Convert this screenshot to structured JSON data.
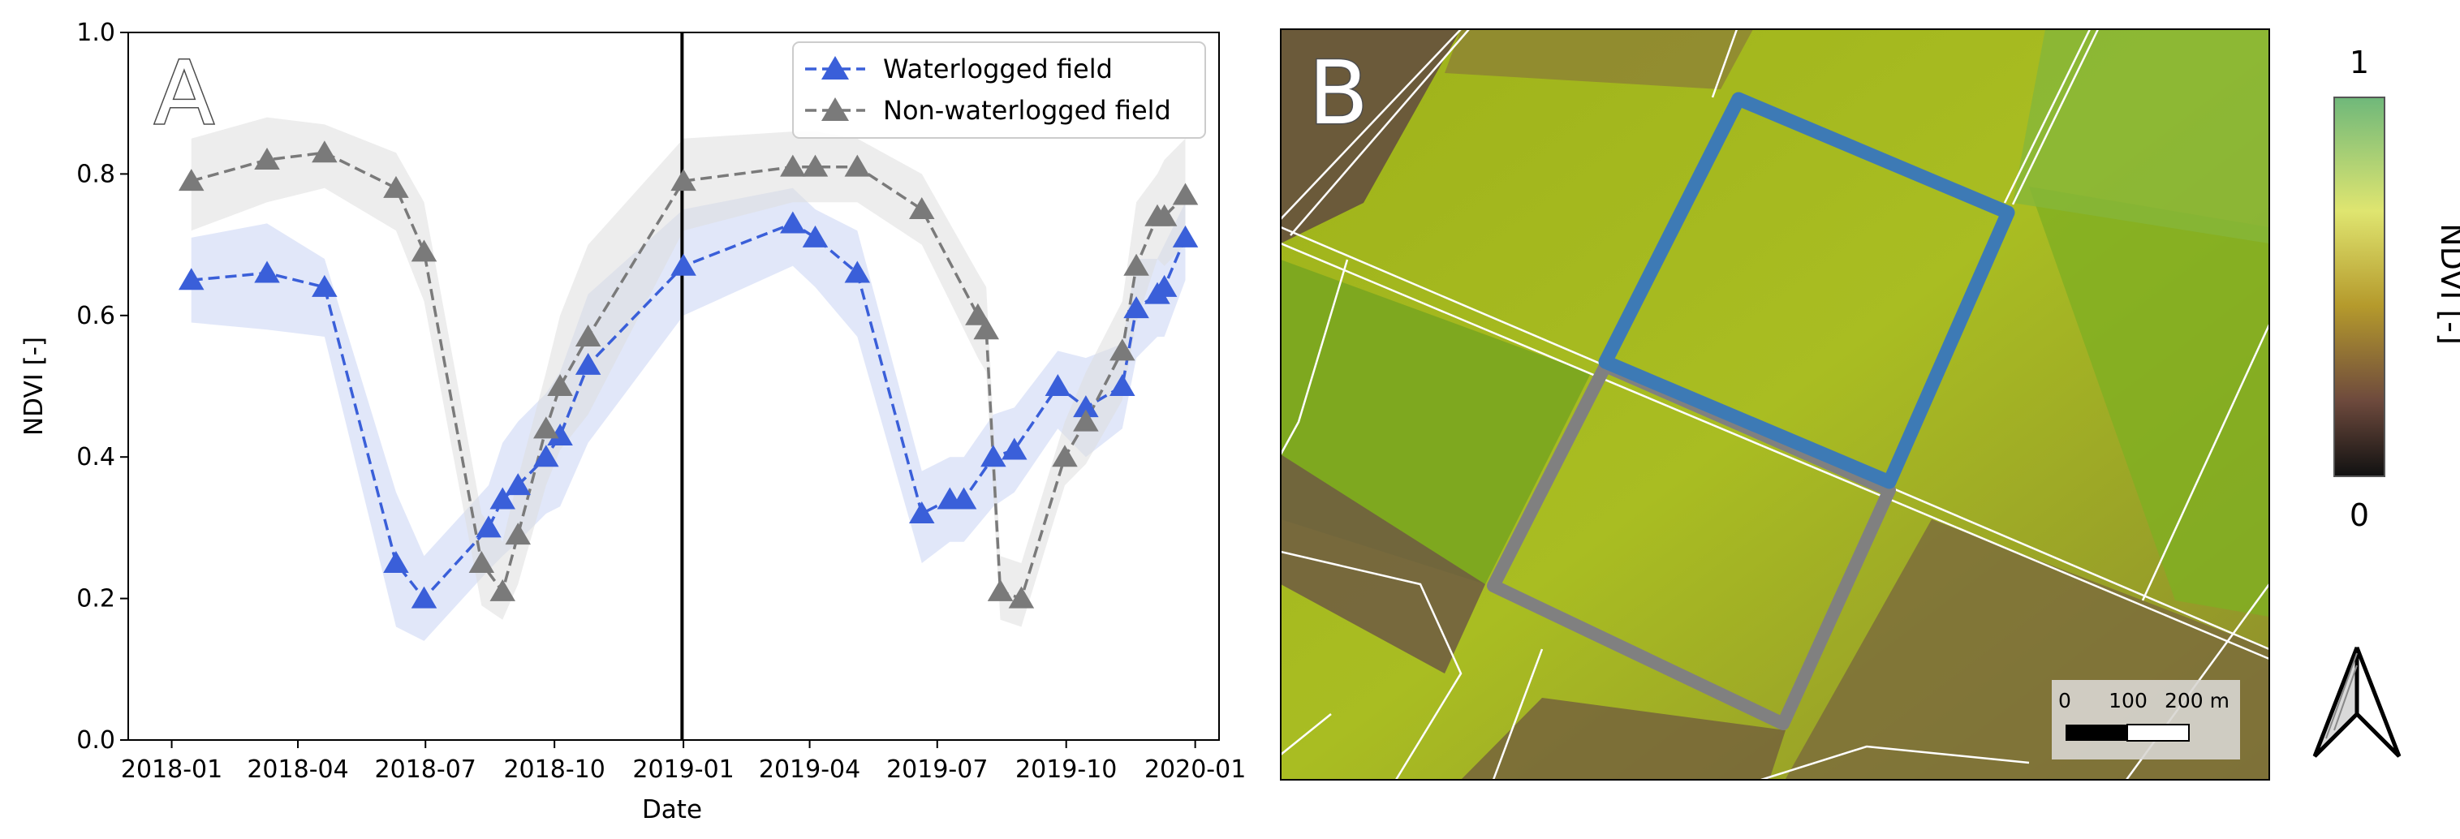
{
  "chart_data": {
    "type": "line",
    "panel_label": "A",
    "xlabel": "Date",
    "ylabel": "NDVI [-]",
    "ylim": [
      0.0,
      1.0
    ],
    "yticks": [
      0.0,
      0.2,
      0.4,
      0.6,
      0.8,
      1.0
    ],
    "ytick_labels": [
      "0.0",
      "0.2",
      "0.4",
      "0.6",
      "0.8",
      "1.0"
    ],
    "xlim": [
      "2017-12-01",
      "2020-01-18"
    ],
    "xticks": [
      "2018-01-01",
      "2018-04-01",
      "2018-07-01",
      "2018-10-01",
      "2019-01-01",
      "2019-04-01",
      "2019-07-01",
      "2019-10-01",
      "2020-01-01"
    ],
    "xtick_labels": [
      "2018-01",
      "2018-04",
      "2018-07",
      "2018-10",
      "2019-01",
      "2019-04",
      "2019-07",
      "2019-10",
      "2020-01"
    ],
    "vertical_line": "2018-12-31",
    "legend_position": "top-right",
    "series": [
      {
        "name": "Waterlogged field",
        "color": "#3a5fd9",
        "band_color": "#c8d4f4",
        "dates": [
          "2018-01-15",
          "2018-03-10",
          "2018-04-20",
          "2018-06-10",
          "2018-06-30",
          "2018-08-15",
          "2018-08-25",
          "2018-09-05",
          "2018-09-25",
          "2018-10-05",
          "2018-10-25",
          "2019-01-01",
          "2019-03-20",
          "2019-04-05",
          "2019-05-05",
          "2019-06-20",
          "2019-07-10",
          "2019-07-20",
          "2019-08-10",
          "2019-08-25",
          "2019-09-25",
          "2019-10-15",
          "2019-11-10",
          "2019-11-20",
          "2019-12-05",
          "2019-12-10",
          "2019-12-25"
        ],
        "values": [
          0.65,
          0.66,
          0.64,
          0.25,
          0.2,
          0.3,
          0.34,
          0.36,
          0.4,
          0.43,
          0.53,
          0.67,
          0.73,
          0.71,
          0.66,
          0.32,
          0.34,
          0.34,
          0.4,
          0.41,
          0.5,
          0.47,
          0.5,
          0.61,
          0.63,
          0.64,
          0.71
        ],
        "band_upper": [
          0.71,
          0.73,
          0.68,
          0.35,
          0.26,
          0.36,
          0.42,
          0.45,
          0.49,
          0.52,
          0.63,
          0.75,
          0.78,
          0.75,
          0.72,
          0.38,
          0.4,
          0.4,
          0.46,
          0.47,
          0.55,
          0.54,
          0.56,
          0.68,
          0.68,
          0.7,
          0.76
        ],
        "band_lower": [
          0.59,
          0.58,
          0.57,
          0.16,
          0.14,
          0.24,
          0.26,
          0.28,
          0.32,
          0.33,
          0.42,
          0.6,
          0.67,
          0.64,
          0.57,
          0.25,
          0.28,
          0.28,
          0.33,
          0.35,
          0.44,
          0.4,
          0.44,
          0.54,
          0.57,
          0.57,
          0.65
        ]
      },
      {
        "name": "Non-waterlogged field",
        "color": "#7a7a7a",
        "band_color": "#dedede",
        "dates": [
          "2018-01-15",
          "2018-03-10",
          "2018-04-20",
          "2018-06-10",
          "2018-06-30",
          "2018-08-10",
          "2018-08-25",
          "2018-09-05",
          "2018-09-25",
          "2018-10-05",
          "2018-10-25",
          "2019-01-01",
          "2019-03-20",
          "2019-04-05",
          "2019-05-05",
          "2019-06-20",
          "2019-07-30",
          "2019-08-05",
          "2019-08-15",
          "2019-08-30",
          "2019-09-30",
          "2019-10-15",
          "2019-11-10",
          "2019-11-20",
          "2019-12-05",
          "2019-12-10",
          "2019-12-25"
        ],
        "values": [
          0.79,
          0.82,
          0.83,
          0.78,
          0.69,
          0.25,
          0.21,
          0.29,
          0.44,
          0.5,
          0.57,
          0.79,
          0.81,
          0.81,
          0.81,
          0.75,
          0.6,
          0.58,
          0.21,
          0.2,
          0.4,
          0.45,
          0.55,
          0.67,
          0.74,
          0.74,
          0.77
        ],
        "band_upper": [
          0.85,
          0.88,
          0.87,
          0.83,
          0.76,
          0.32,
          0.28,
          0.37,
          0.52,
          0.6,
          0.7,
          0.85,
          0.86,
          0.86,
          0.85,
          0.8,
          0.66,
          0.64,
          0.26,
          0.25,
          0.45,
          0.52,
          0.62,
          0.76,
          0.8,
          0.82,
          0.85
        ],
        "band_lower": [
          0.72,
          0.76,
          0.78,
          0.72,
          0.62,
          0.19,
          0.17,
          0.22,
          0.36,
          0.41,
          0.46,
          0.72,
          0.76,
          0.76,
          0.76,
          0.7,
          0.54,
          0.52,
          0.17,
          0.16,
          0.36,
          0.39,
          0.48,
          0.59,
          0.68,
          0.67,
          0.7
        ]
      }
    ]
  },
  "map_panel": {
    "panel_label": "B",
    "colorbar": {
      "max_label": "1",
      "min_label": "0",
      "title": "NDVI [-]"
    },
    "scale_bar": {
      "labels": [
        "0",
        "100",
        "200 m"
      ]
    },
    "field_outline_colors": {
      "waterlogged": "#3d7ab5",
      "non_waterlogged": "#808080"
    },
    "north_arrow": "north-arrow-icon"
  }
}
